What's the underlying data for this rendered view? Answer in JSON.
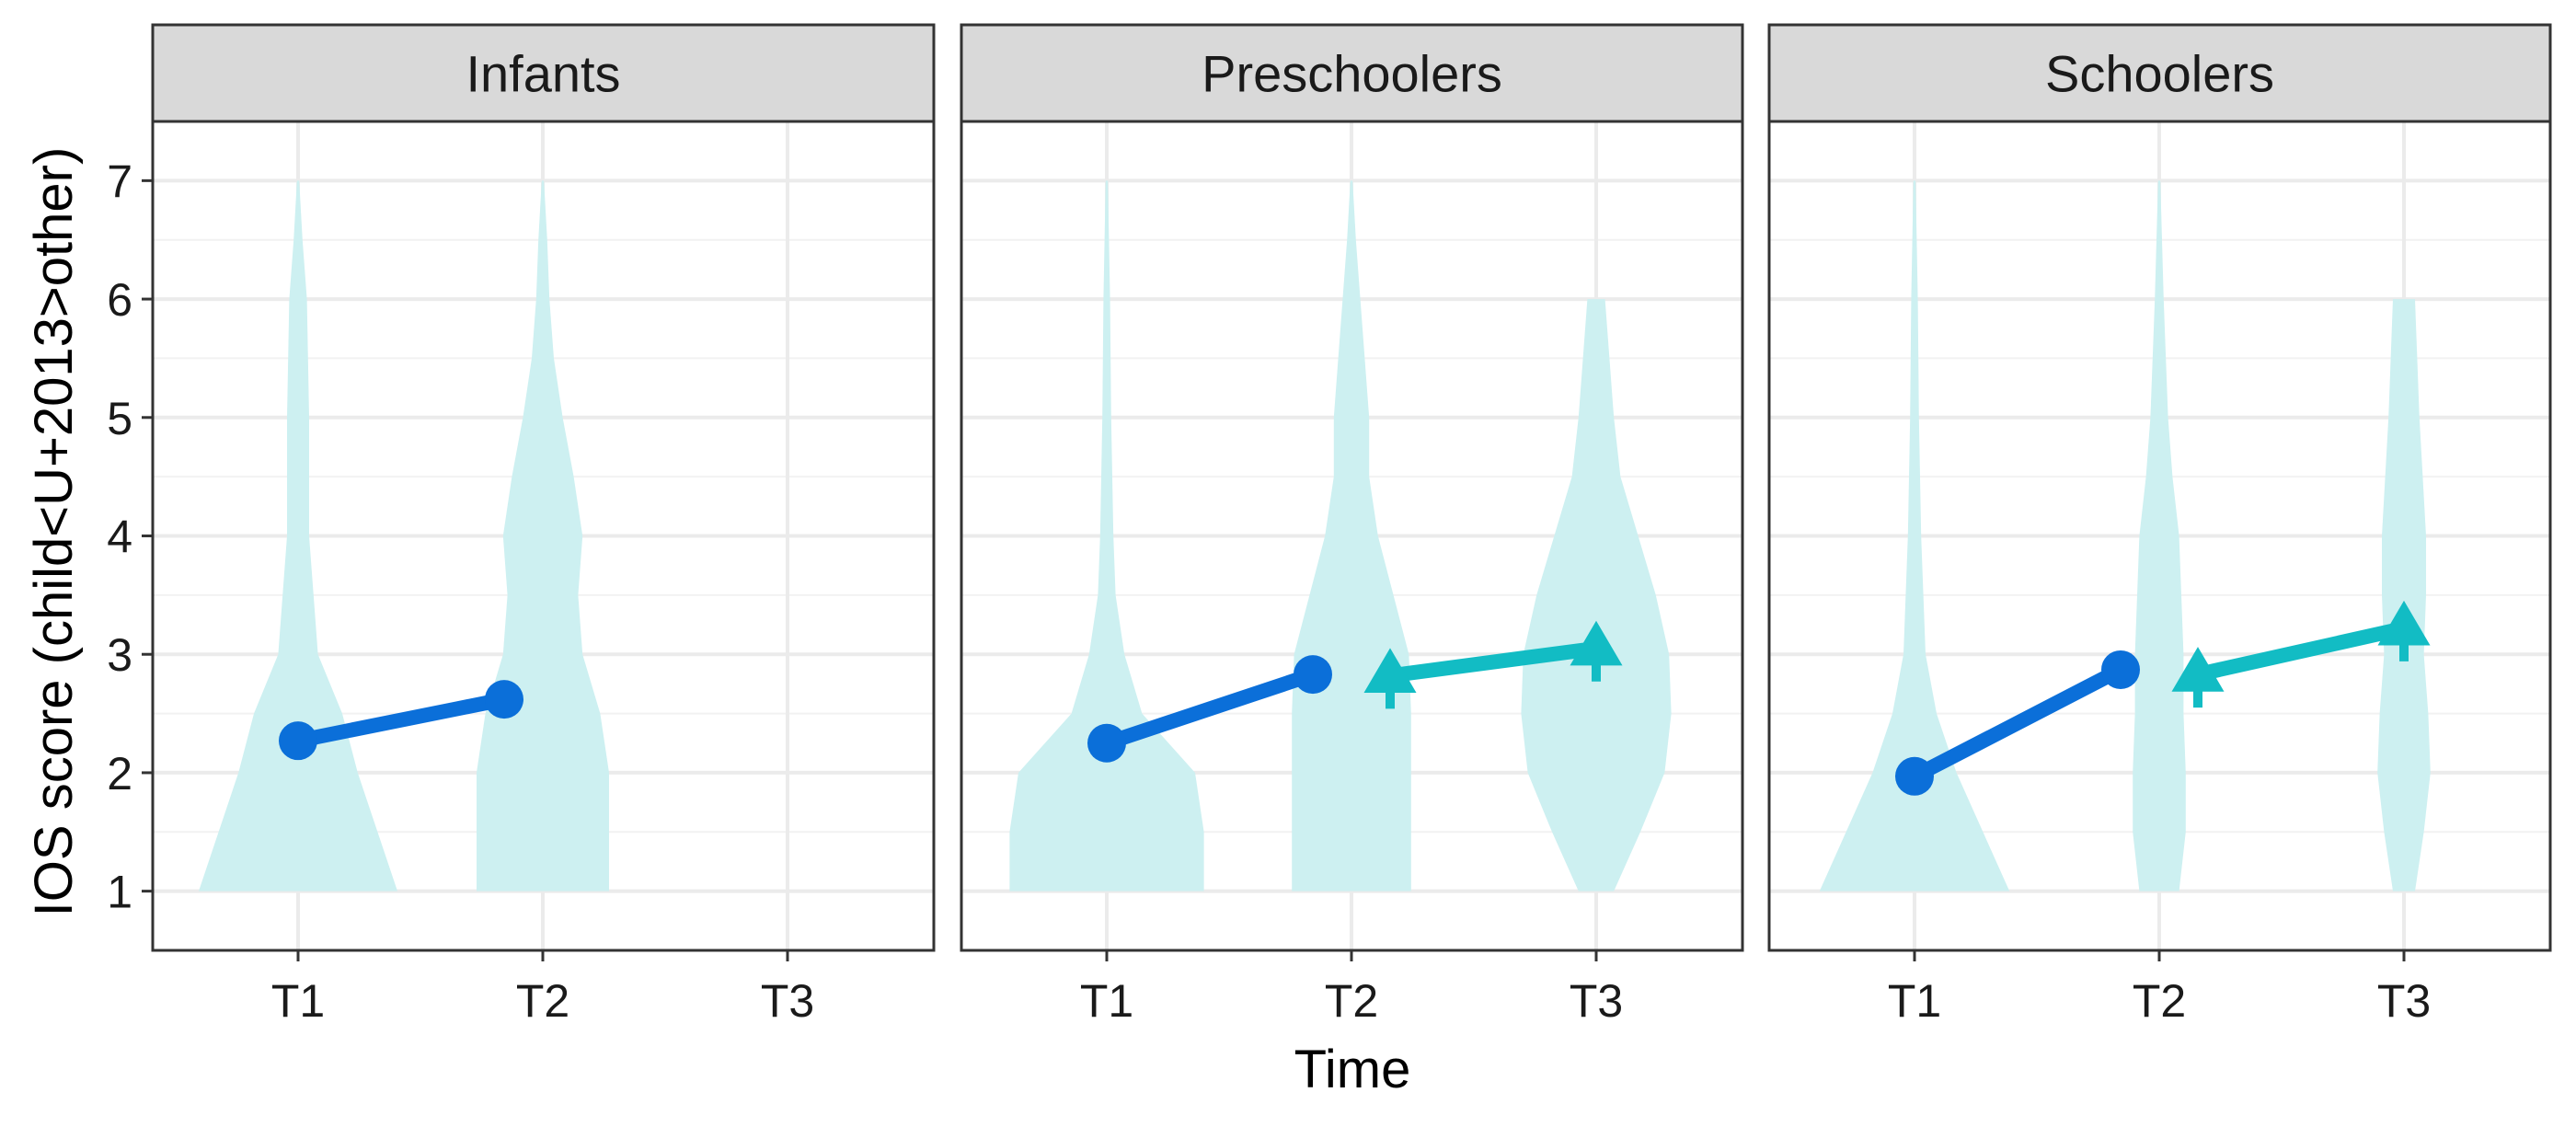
{
  "chart_data": {
    "type": "line",
    "xlabel": "Time",
    "ylabel": "IOS score (child<U+2013>other)",
    "x_categories": [
      "T1",
      "T2",
      "T3"
    ],
    "ylim": [
      0.5,
      7.5
    ],
    "y_ticks": [
      1,
      2,
      3,
      4,
      5,
      6,
      7
    ],
    "grid": true,
    "colors": {
      "series_1": "#0b6fd9",
      "series_2": "#12bcc4",
      "violin": "#cdf0f1",
      "strip_bg": "#d9d9d9",
      "grid": "#ebebeb"
    },
    "panels": [
      {
        "title": "Infants",
        "series": [
          {
            "marker": "circle",
            "points": [
              {
                "x": "T1",
                "y": 2.27
              },
              {
                "x": "T2",
                "y": 2.62
              }
            ]
          }
        ],
        "violins": [
          {
            "x": "T1",
            "ymin": 1,
            "ymax": 7,
            "width": [
              [
                1.0,
                0.45
              ],
              [
                1.5,
                0.36
              ],
              [
                2.0,
                0.27
              ],
              [
                2.5,
                0.2
              ],
              [
                3.0,
                0.09
              ],
              [
                3.5,
                0.07
              ],
              [
                4.0,
                0.05
              ],
              [
                5.0,
                0.05
              ],
              [
                6.0,
                0.04
              ],
              [
                6.5,
                0.02
              ],
              [
                7.0,
                0.005
              ]
            ]
          },
          {
            "x": "T2",
            "ymin": 1,
            "ymax": 7,
            "width": [
              [
                1.0,
                0.3
              ],
              [
                1.5,
                0.3
              ],
              [
                2.0,
                0.3
              ],
              [
                2.5,
                0.26
              ],
              [
                3.0,
                0.18
              ],
              [
                3.5,
                0.16
              ],
              [
                4.0,
                0.18
              ],
              [
                4.5,
                0.14
              ],
              [
                5.0,
                0.09
              ],
              [
                5.5,
                0.05
              ],
              [
                6.0,
                0.03
              ],
              [
                6.5,
                0.02
              ],
              [
                7.0,
                0.005
              ]
            ]
          }
        ]
      },
      {
        "title": "Preschoolers",
        "series": [
          {
            "marker": "circle",
            "points": [
              {
                "x": "T1",
                "y": 2.25
              },
              {
                "x": "T2",
                "y": 2.83
              }
            ]
          },
          {
            "marker": "triangle",
            "points": [
              {
                "x": "T2",
                "y": 2.82
              },
              {
                "x": "T3",
                "y": 3.05
              }
            ]
          }
        ],
        "violins": [
          {
            "x": "T1",
            "ymin": 1,
            "ymax": 7,
            "width": [
              [
                1.0,
                0.44
              ],
              [
                1.5,
                0.44
              ],
              [
                2.0,
                0.4
              ],
              [
                2.5,
                0.16
              ],
              [
                3.0,
                0.08
              ],
              [
                3.5,
                0.04
              ],
              [
                4.0,
                0.03
              ],
              [
                5.0,
                0.02
              ],
              [
                6.0,
                0.015
              ],
              [
                7.0,
                0.005
              ]
            ]
          },
          {
            "x": "T2",
            "ymin": 1,
            "ymax": 7,
            "width": [
              [
                1.0,
                0.27
              ],
              [
                2.0,
                0.27
              ],
              [
                2.5,
                0.27
              ],
              [
                3.0,
                0.26
              ],
              [
                3.5,
                0.19
              ],
              [
                4.0,
                0.12
              ],
              [
                4.5,
                0.08
              ],
              [
                5.0,
                0.08
              ],
              [
                5.5,
                0.06
              ],
              [
                6.0,
                0.04
              ],
              [
                6.5,
                0.02
              ],
              [
                7.0,
                0.005
              ]
            ]
          },
          {
            "x": "T3",
            "ymin": 1,
            "ymax": 6,
            "width": [
              [
                1.0,
                0.08
              ],
              [
                1.5,
                0.2
              ],
              [
                2.0,
                0.31
              ],
              [
                2.5,
                0.34
              ],
              [
                3.0,
                0.33
              ],
              [
                3.5,
                0.27
              ],
              [
                4.0,
                0.19
              ],
              [
                4.5,
                0.11
              ],
              [
                5.0,
                0.08
              ],
              [
                5.5,
                0.06
              ],
              [
                6.0,
                0.04
              ]
            ]
          }
        ]
      },
      {
        "title": "Schoolers",
        "series": [
          {
            "marker": "circle",
            "points": [
              {
                "x": "T1",
                "y": 1.97
              },
              {
                "x": "T2",
                "y": 2.87
              }
            ]
          },
          {
            "marker": "triangle",
            "points": [
              {
                "x": "T2",
                "y": 2.83
              },
              {
                "x": "T3",
                "y": 3.22
              }
            ]
          }
        ],
        "violins": [
          {
            "x": "T1",
            "ymin": 1,
            "ymax": 7,
            "width": [
              [
                1.0,
                0.43
              ],
              [
                1.5,
                0.31
              ],
              [
                2.0,
                0.19
              ],
              [
                2.5,
                0.1
              ],
              [
                3.0,
                0.05
              ],
              [
                3.5,
                0.04
              ],
              [
                4.0,
                0.03
              ],
              [
                5.0,
                0.02
              ],
              [
                6.0,
                0.015
              ],
              [
                7.0,
                0.005
              ]
            ]
          },
          {
            "x": "T2",
            "ymin": 1,
            "ymax": 7,
            "width": [
              [
                1.0,
                0.09
              ],
              [
                1.5,
                0.12
              ],
              [
                2.0,
                0.12
              ],
              [
                2.5,
                0.11
              ],
              [
                3.0,
                0.11
              ],
              [
                3.5,
                0.1
              ],
              [
                4.0,
                0.09
              ],
              [
                4.5,
                0.06
              ],
              [
                5.0,
                0.04
              ],
              [
                6.0,
                0.02
              ],
              [
                7.0,
                0.005
              ]
            ]
          },
          {
            "x": "T3",
            "ymin": 1,
            "ymax": 6,
            "width": [
              [
                1.0,
                0.05
              ],
              [
                1.5,
                0.09
              ],
              [
                2.0,
                0.12
              ],
              [
                2.5,
                0.11
              ],
              [
                3.0,
                0.09
              ],
              [
                3.5,
                0.1
              ],
              [
                4.0,
                0.1
              ],
              [
                5.0,
                0.07
              ],
              [
                6.0,
                0.05
              ]
            ]
          }
        ]
      }
    ]
  }
}
